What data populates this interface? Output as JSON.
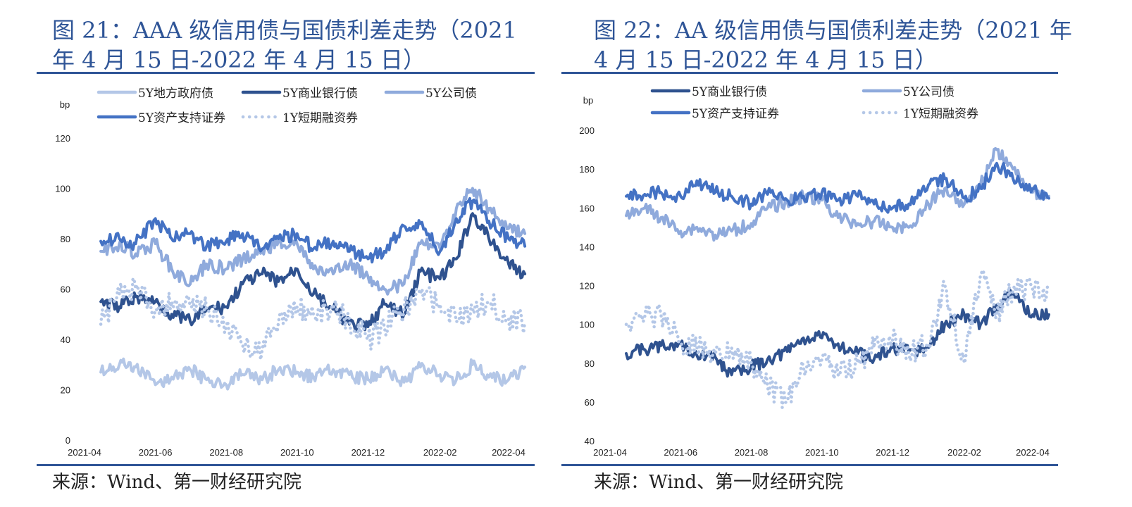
{
  "colors": {
    "accent": "#2f5597",
    "local_gov": "#b4c7e7",
    "bank": "#2f528f",
    "corp": "#8faadc",
    "abs": "#4472c4",
    "cp": "#b4c7e7"
  },
  "charts": [
    {
      "title": "图 21：AAA 级信用债与国债利差走势（2021 年 4 月 15 日-2022 年 4 月 15 日）",
      "source": "来源：Wind、第一财经研究院",
      "chart_data": {
        "type": "line",
        "ylabel": "bp",
        "ylim": [
          0,
          120
        ],
        "yticks": [
          0,
          20,
          40,
          60,
          80,
          100,
          120
        ],
        "xlim": [
          "2021-04-15",
          "2022-04-15"
        ],
        "x_tick_labels": [
          "2021-04",
          "2021-06",
          "2021-08",
          "2021-10",
          "2021-12",
          "2022-02",
          "2022-04"
        ],
        "x_tick_dates": [
          "2021-04-01",
          "2021-06-01",
          "2021-08-01",
          "2021-10-01",
          "2021-12-01",
          "2022-02-01",
          "2022-04-01"
        ],
        "legend": "top",
        "series": [
          {
            "key": "local_gov",
            "name": "5Y地方政府债",
            "style": "solid",
            "color": "#b4c7e7",
            "x": [
              "2021-04-15",
              "2021-05-01",
              "2021-05-15",
              "2021-06-01",
              "2021-06-15",
              "2021-07-01",
              "2021-07-15",
              "2021-08-01",
              "2021-08-15",
              "2021-09-01",
              "2021-09-15",
              "2021-10-01",
              "2021-10-15",
              "2021-11-01",
              "2021-11-15",
              "2021-12-01",
              "2021-12-15",
              "2022-01-01",
              "2022-01-15",
              "2022-02-01",
              "2022-02-15",
              "2022-03-01",
              "2022-03-15",
              "2022-04-01",
              "2022-04-15"
            ],
            "values": [
              27,
              30,
              29,
              22,
              25,
              28,
              24,
              22,
              26,
              24,
              28,
              27,
              25,
              28,
              26,
              24,
              28,
              23,
              29,
              26,
              24,
              30,
              25,
              24,
              29
            ]
          },
          {
            "key": "bank",
            "name": "5Y商业银行债",
            "style": "solid",
            "color": "#2f528f",
            "x": [
              "2021-04-15",
              "2021-05-01",
              "2021-05-15",
              "2021-06-01",
              "2021-06-15",
              "2021-07-01",
              "2021-07-15",
              "2021-08-01",
              "2021-08-15",
              "2021-09-01",
              "2021-09-15",
              "2021-10-01",
              "2021-10-15",
              "2021-11-01",
              "2021-11-15",
              "2021-12-01",
              "2021-12-15",
              "2022-01-01",
              "2022-01-15",
              "2022-02-01",
              "2022-02-15",
              "2022-03-01",
              "2022-03-15",
              "2022-04-01",
              "2022-04-15"
            ],
            "values": [
              55,
              53,
              57,
              55,
              50,
              47,
              52,
              53,
              62,
              66,
              63,
              68,
              58,
              52,
              46,
              45,
              54,
              50,
              67,
              64,
              72,
              90,
              80,
              70,
              66
            ]
          },
          {
            "key": "corp",
            "name": "5Y公司债",
            "style": "solid",
            "color": "#8faadc",
            "x": [
              "2021-04-15",
              "2021-05-01",
              "2021-05-15",
              "2021-06-01",
              "2021-06-15",
              "2021-07-01",
              "2021-07-15",
              "2021-08-01",
              "2021-08-15",
              "2021-09-01",
              "2021-09-15",
              "2021-10-01",
              "2021-10-15",
              "2021-11-01",
              "2021-11-15",
              "2021-12-01",
              "2021-12-15",
              "2022-01-01",
              "2022-01-15",
              "2022-02-01",
              "2022-02-15",
              "2022-03-01",
              "2022-03-15",
              "2022-04-01",
              "2022-04-15"
            ],
            "values": [
              75,
              78,
              74,
              78,
              68,
              62,
              70,
              68,
              72,
              75,
              79,
              78,
              68,
              66,
              70,
              65,
              60,
              62,
              78,
              76,
              92,
              100,
              92,
              84,
              82
            ]
          },
          {
            "key": "abs",
            "name": "5Y资产支持证券",
            "style": "solid",
            "color": "#4472c4",
            "x": [
              "2021-04-15",
              "2021-05-01",
              "2021-05-15",
              "2021-06-01",
              "2021-06-15",
              "2021-07-01",
              "2021-07-15",
              "2021-08-01",
              "2021-08-15",
              "2021-09-01",
              "2021-09-15",
              "2021-10-01",
              "2021-10-15",
              "2021-11-01",
              "2021-11-15",
              "2021-12-01",
              "2021-12-15",
              "2022-01-01",
              "2022-01-15",
              "2022-02-01",
              "2022-02-15",
              "2022-03-01",
              "2022-03-15",
              "2022-04-01",
              "2022-04-15"
            ],
            "values": [
              79,
              80,
              78,
              88,
              80,
              82,
              77,
              79,
              82,
              76,
              80,
              82,
              76,
              79,
              75,
              72,
              75,
              85,
              86,
              75,
              88,
              95,
              87,
              80,
              77
            ]
          },
          {
            "key": "cp",
            "name": "1Y短期融资券",
            "style": "dotted",
            "color": "#b4c7e7",
            "x": [
              "2021-04-15",
              "2021-05-01",
              "2021-05-15",
              "2021-06-01",
              "2021-06-15",
              "2021-07-01",
              "2021-07-15",
              "2021-08-01",
              "2021-08-15",
              "2021-09-01",
              "2021-09-15",
              "2021-10-01",
              "2021-10-15",
              "2021-11-01",
              "2021-11-15",
              "2021-12-01",
              "2021-12-15",
              "2022-01-01",
              "2022-01-15",
              "2022-02-01",
              "2022-02-15",
              "2022-03-01",
              "2022-03-15",
              "2022-04-01",
              "2022-04-15"
            ],
            "values": [
              46,
              58,
              60,
              52,
              55,
              53,
              52,
              45,
              38,
              36,
              47,
              53,
              50,
              52,
              48,
              40,
              45,
              52,
              58,
              54,
              47,
              52,
              55,
              48,
              47
            ]
          }
        ]
      }
    },
    {
      "title": "图 22：AA 级信用债与国债利差走势（2021 年 4 月 15 日-2022 年 4 月 15 日）",
      "source": "来源：Wind、第一财经研究院",
      "chart_data": {
        "type": "line",
        "ylabel": "bp",
        "ylim": [
          40,
          200
        ],
        "yticks": [
          40,
          60,
          80,
          100,
          120,
          140,
          160,
          180,
          200
        ],
        "xlim": [
          "2021-04-15",
          "2022-04-15"
        ],
        "x_tick_labels": [
          "2021-04",
          "2021-06",
          "2021-08",
          "2021-10",
          "2021-12",
          "2022-02",
          "2022-04"
        ],
        "x_tick_dates": [
          "2021-04-01",
          "2021-06-01",
          "2021-08-01",
          "2021-10-01",
          "2021-12-01",
          "2022-02-01",
          "2022-04-01"
        ],
        "legend": "top",
        "series": [
          {
            "key": "bank",
            "name": "5Y商业银行债",
            "style": "solid",
            "color": "#2f528f",
            "x": [
              "2021-04-15",
              "2021-05-01",
              "2021-05-15",
              "2021-06-01",
              "2021-06-15",
              "2021-07-01",
              "2021-07-15",
              "2021-08-01",
              "2021-08-15",
              "2021-09-01",
              "2021-09-15",
              "2021-10-01",
              "2021-10-15",
              "2021-11-01",
              "2021-11-15",
              "2021-12-01",
              "2021-12-15",
              "2022-01-01",
              "2022-01-15",
              "2022-02-01",
              "2022-02-15",
              "2022-03-01",
              "2022-03-15",
              "2022-04-01",
              "2022-04-15"
            ],
            "values": [
              85,
              87,
              89,
              90,
              84,
              83,
              74,
              78,
              82,
              86,
              93,
              93,
              90,
              85,
              82,
              88,
              86,
              88,
              100,
              105,
              100,
              110,
              116,
              105,
              105
            ]
          },
          {
            "key": "corp",
            "name": "5Y公司债",
            "style": "solid",
            "color": "#8faadc",
            "x": [
              "2021-04-15",
              "2021-05-01",
              "2021-05-15",
              "2021-06-01",
              "2021-06-15",
              "2021-07-01",
              "2021-07-15",
              "2021-08-01",
              "2021-08-15",
              "2021-09-01",
              "2021-09-15",
              "2021-10-01",
              "2021-10-15",
              "2021-11-01",
              "2021-11-15",
              "2021-12-01",
              "2021-12-15",
              "2022-01-01",
              "2022-01-15",
              "2022-02-01",
              "2022-02-15",
              "2022-03-01",
              "2022-03-15",
              "2022-04-01",
              "2022-04-15"
            ],
            "values": [
              156,
              160,
              155,
              148,
              150,
              146,
              148,
              152,
              160,
              163,
              166,
              164,
              155,
              152,
              153,
              150,
              150,
              162,
              170,
              162,
              172,
              190,
              180,
              168,
              166
            ]
          },
          {
            "key": "abs",
            "name": "5Y资产支持证券",
            "style": "solid",
            "color": "#4472c4",
            "x": [
              "2021-04-15",
              "2021-05-01",
              "2021-05-15",
              "2021-06-01",
              "2021-06-15",
              "2021-07-01",
              "2021-07-15",
              "2021-08-01",
              "2021-08-15",
              "2021-09-01",
              "2021-09-15",
              "2021-10-01",
              "2021-10-15",
              "2021-11-01",
              "2021-11-15",
              "2021-12-01",
              "2021-12-15",
              "2022-01-01",
              "2022-01-15",
              "2022-02-01",
              "2022-02-15",
              "2022-03-01",
              "2022-03-15",
              "2022-04-01",
              "2022-04-15"
            ],
            "values": [
              166,
              167,
              168,
              166,
              174,
              168,
              166,
              162,
              167,
              164,
              166,
              168,
              164,
              166,
              162,
              160,
              162,
              172,
              175,
              165,
              170,
              183,
              175,
              170,
              165
            ]
          },
          {
            "key": "cp",
            "name": "1Y短期融资券",
            "style": "dotted",
            "color": "#b4c7e7",
            "x": [
              "2021-04-15",
              "2021-05-01",
              "2021-05-15",
              "2021-06-01",
              "2021-06-15",
              "2021-07-01",
              "2021-07-15",
              "2021-08-01",
              "2021-08-15",
              "2021-09-01",
              "2021-09-15",
              "2021-10-01",
              "2021-10-15",
              "2021-11-01",
              "2021-11-15",
              "2021-12-01",
              "2021-12-15",
              "2022-01-01",
              "2022-01-15",
              "2022-02-01",
              "2022-02-15",
              "2022-03-01",
              "2022-03-15",
              "2022-04-01",
              "2022-04-15"
            ],
            "values": [
              100,
              104,
              105,
              90,
              88,
              85,
              88,
              80,
              68,
              60,
              78,
              82,
              74,
              80,
              88,
              92,
              85,
              90,
              120,
              80,
              126,
              105,
              118,
              118,
              118
            ]
          }
        ]
      }
    }
  ]
}
